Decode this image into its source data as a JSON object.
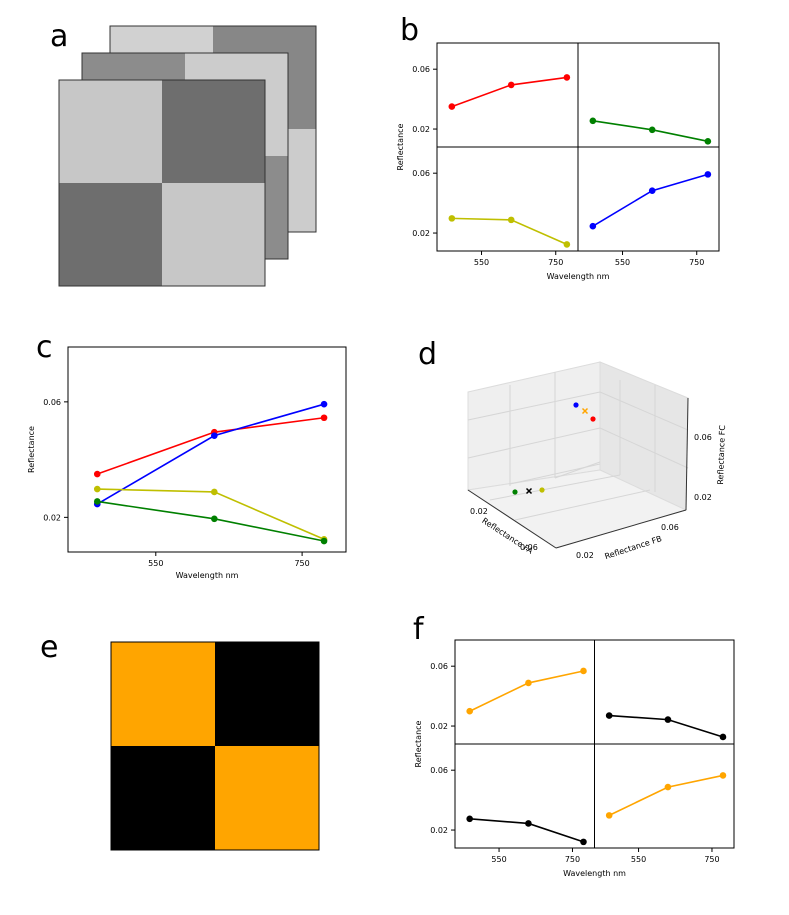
{
  "panel_labels": {
    "a": "a",
    "b": "b",
    "c": "c",
    "d": "d",
    "e": "e",
    "f": "f"
  },
  "colors": {
    "red": "#ff0000",
    "green": "#008000",
    "blue": "#0000ff",
    "yellow": "#bfbf00",
    "orange": "#ffa500",
    "black": "#000000"
  },
  "chart_data": [
    {
      "id": "a",
      "type": "heatmap",
      "title": "",
      "layers": [
        {
          "grid": [
            [
              0.78,
              0.43
            ],
            [
              0.43,
              0.78
            ]
          ]
        },
        {
          "grid": [
            [
              0.55,
              0.8
            ],
            [
              0.8,
              0.55
            ]
          ]
        },
        {
          "grid": [
            [
              0.82,
              0.53
            ],
            [
              0.42,
              0.8
            ]
          ]
        }
      ]
    },
    {
      "id": "b",
      "type": "line",
      "ylabel": "Reflectance",
      "xlabel": "Wavelength nm",
      "xticks": [
        "550",
        "750"
      ],
      "yticks": [
        "0.06",
        "0.02"
      ],
      "x": [
        470,
        630,
        780
      ],
      "ylim": [
        0.008,
        0.0775
      ],
      "xlim": [
        430,
        810
      ],
      "subplots": [
        {
          "name": "top-left",
          "color": "red",
          "values": [
            0.035,
            0.0495,
            0.0545
          ]
        },
        {
          "name": "top-right",
          "color": "green",
          "values": [
            0.0255,
            0.0195,
            0.0118
          ]
        },
        {
          "name": "bottom-left",
          "color": "yellow",
          "values": [
            0.0298,
            0.0288,
            0.0124
          ]
        },
        {
          "name": "bottom-right",
          "color": "blue",
          "values": [
            0.0246,
            0.0483,
            0.0592
          ]
        }
      ]
    },
    {
      "id": "c",
      "type": "line",
      "ylabel": "Reflectance",
      "xlabel": "Wavelength nm",
      "xticks": [
        "550",
        "750"
      ],
      "yticks": [
        "0.06",
        "0.02"
      ],
      "xlim": [
        430,
        810
      ],
      "ylim": [
        0.008,
        0.079
      ],
      "x": [
        470,
        630,
        780
      ],
      "series": [
        {
          "color": "red",
          "values": [
            0.035,
            0.0495,
            0.0545
          ]
        },
        {
          "color": "blue",
          "values": [
            0.0246,
            0.0483,
            0.0592
          ]
        },
        {
          "color": "yellow",
          "values": [
            0.0298,
            0.0288,
            0.0124
          ]
        },
        {
          "color": "green",
          "values": [
            0.0255,
            0.0195,
            0.0118
          ]
        }
      ]
    },
    {
      "id": "d",
      "type": "scatter",
      "xlabel": "Reflectance FA",
      "ylabel": "Reflectance FB",
      "zlabel": "Reflectance FC",
      "xticks": [
        "0.02",
        "0.06"
      ],
      "yticks": [
        "0.02",
        "0.06"
      ],
      "zticks": [
        "0.02",
        "0.06"
      ],
      "points": [
        {
          "color": "blue",
          "marker": "dot"
        },
        {
          "color": "orange",
          "marker": "x"
        },
        {
          "color": "red",
          "marker": "dot"
        },
        {
          "color": "green",
          "marker": "dot"
        },
        {
          "color": "black",
          "marker": "x"
        },
        {
          "color": "yellow",
          "marker": "dot"
        }
      ]
    },
    {
      "id": "e",
      "type": "heatmap",
      "grid": [
        [
          "orange",
          "black"
        ],
        [
          "black",
          "orange"
        ]
      ]
    },
    {
      "id": "f",
      "type": "line",
      "ylabel": "Reflectance",
      "xlabel": "Wavelength nm",
      "xticks": [
        "550",
        "750"
      ],
      "yticks": [
        "0.06",
        "0.02"
      ],
      "x": [
        470,
        630,
        780
      ],
      "ylim": [
        0.008,
        0.0775
      ],
      "xlim": [
        430,
        810
      ],
      "subplots": [
        {
          "name": "top-left",
          "color": "orange",
          "values": [
            0.0299,
            0.0488,
            0.0568
          ]
        },
        {
          "name": "top-right",
          "color": "black",
          "values": [
            0.027,
            0.0243,
            0.0127
          ]
        },
        {
          "name": "bottom-left",
          "color": "black",
          "values": [
            0.0275,
            0.0244,
            0.0121
          ]
        },
        {
          "name": "bottom-right",
          "color": "orange",
          "values": [
            0.0298,
            0.0487,
            0.0565
          ]
        }
      ]
    }
  ]
}
